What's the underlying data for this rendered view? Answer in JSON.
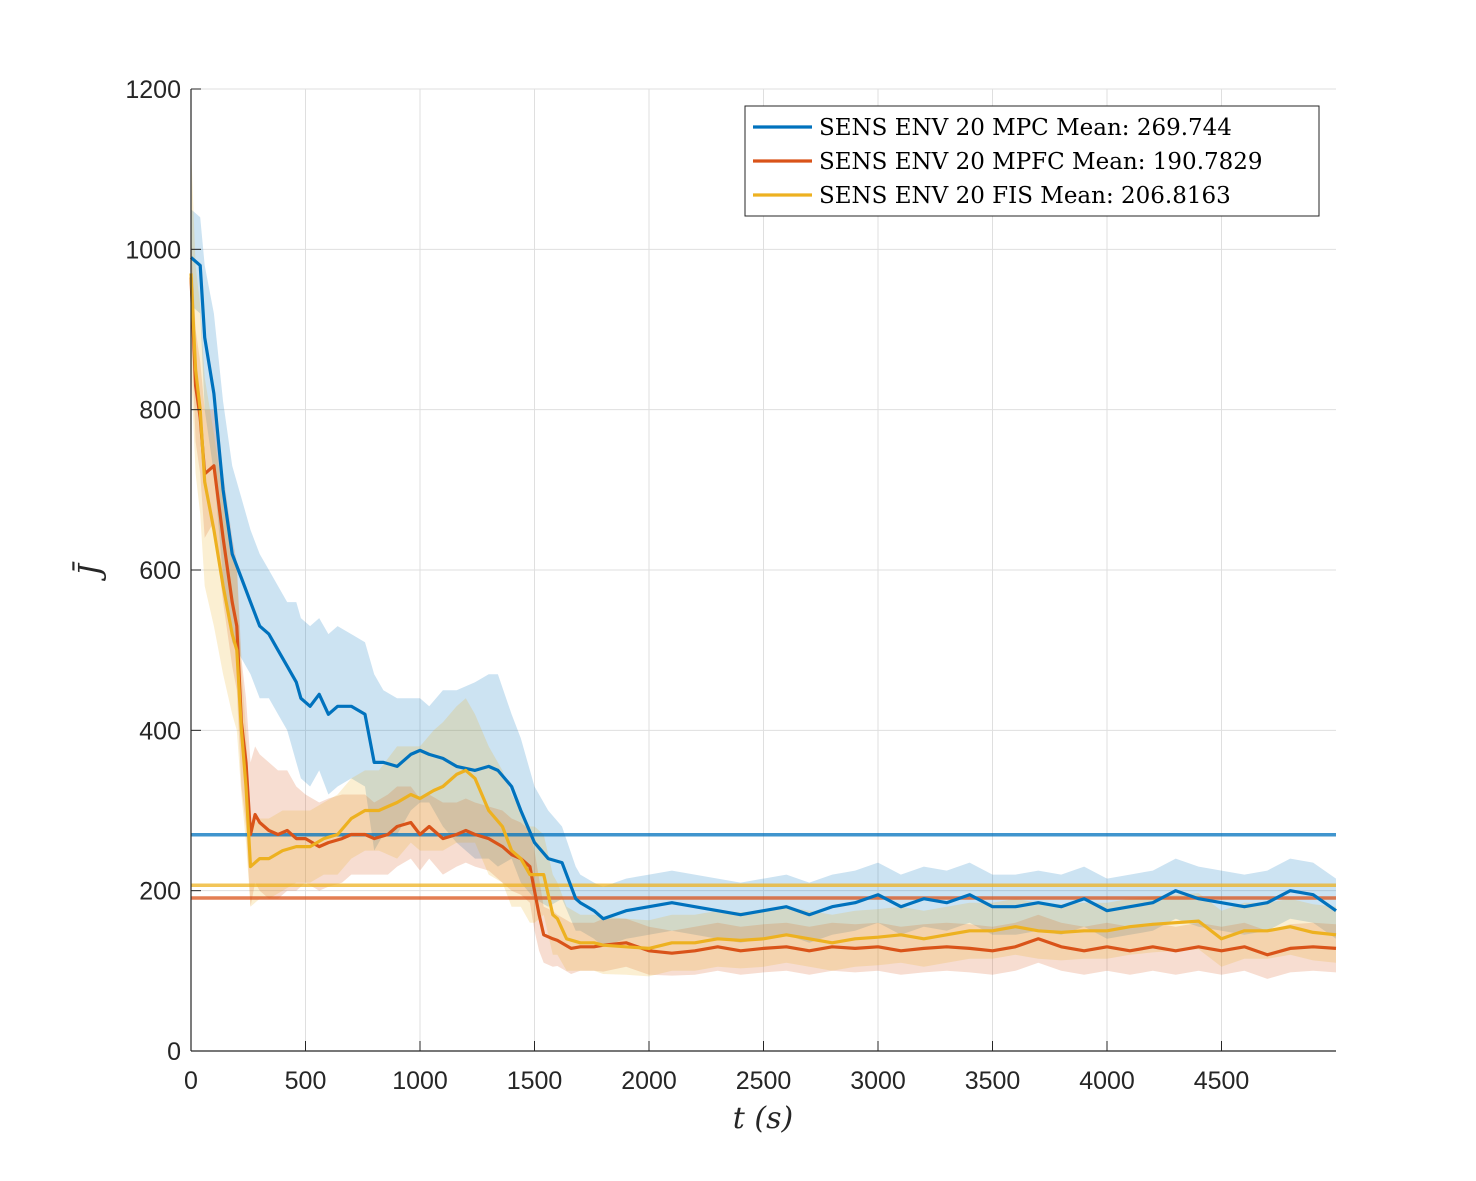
{
  "chart_data": {
    "type": "line",
    "xlabel": "t (s)",
    "ylabel": "J̄",
    "xlim": [
      0,
      5000
    ],
    "ylim": [
      0,
      1200
    ],
    "xticks": [
      0,
      500,
      1000,
      1500,
      2000,
      2500,
      3000,
      3500,
      4000,
      4500
    ],
    "xtick_labels": [
      "0",
      "500",
      "1000",
      "1500",
      "2000",
      "2500",
      "3000",
      "3500",
      "4000",
      "4500"
    ],
    "yticks": [
      0,
      200,
      400,
      600,
      800,
      1000,
      1200
    ],
    "ytick_labels": [
      "0",
      "200",
      "400",
      "600",
      "800",
      "1000",
      "1200"
    ],
    "grid": true,
    "legend_position": "top-right",
    "series": [
      {
        "name": "SENS ENV 20 MPC Mean: 269.744",
        "color": "#0072BD",
        "mean_line": 269.744,
        "x": [
          0,
          40,
          60,
          100,
          140,
          180,
          220,
          260,
          300,
          340,
          380,
          420,
          460,
          480,
          520,
          560,
          600,
          640,
          700,
          760,
          800,
          840,
          900,
          960,
          1000,
          1040,
          1100,
          1160,
          1240,
          1300,
          1340,
          1400,
          1440,
          1500,
          1560,
          1620,
          1680,
          1700,
          1760,
          1800,
          1900,
          2000,
          2100,
          2200,
          2300,
          2400,
          2500,
          2600,
          2700,
          2800,
          2900,
          3000,
          3100,
          3200,
          3300,
          3400,
          3500,
          3600,
          3700,
          3800,
          3900,
          4000,
          4100,
          4200,
          4300,
          4400,
          4500,
          4600,
          4700,
          4800,
          4900,
          5000
        ],
        "y": [
          990,
          980,
          890,
          820,
          700,
          620,
          590,
          560,
          530,
          520,
          500,
          480,
          460,
          440,
          430,
          445,
          420,
          430,
          430,
          420,
          360,
          360,
          355,
          370,
          375,
          370,
          365,
          355,
          350,
          355,
          350,
          330,
          300,
          260,
          240,
          235,
          190,
          185,
          175,
          165,
          175,
          180,
          185,
          180,
          175,
          170,
          175,
          180,
          170,
          180,
          185,
          195,
          180,
          190,
          185,
          195,
          180,
          180,
          185,
          180,
          190,
          175,
          180,
          185,
          200,
          190,
          185,
          180,
          185,
          200,
          195,
          175
        ],
        "band_upper": [
          1050,
          1040,
          980,
          920,
          810,
          730,
          690,
          650,
          620,
          600,
          580,
          560,
          560,
          540,
          530,
          540,
          520,
          530,
          520,
          510,
          470,
          450,
          440,
          440,
          440,
          430,
          450,
          450,
          460,
          470,
          470,
          420,
          390,
          330,
          300,
          280,
          230,
          220,
          210,
          205,
          215,
          220,
          225,
          220,
          215,
          210,
          215,
          220,
          210,
          220,
          225,
          235,
          220,
          230,
          225,
          235,
          220,
          220,
          225,
          220,
          230,
          215,
          220,
          225,
          240,
          230,
          225,
          220,
          225,
          240,
          235,
          215
        ],
        "band_lower": [
          930,
          920,
          800,
          720,
          590,
          510,
          490,
          470,
          440,
          440,
          420,
          400,
          360,
          340,
          330,
          350,
          320,
          330,
          340,
          330,
          250,
          270,
          270,
          300,
          310,
          310,
          280,
          260,
          240,
          240,
          230,
          240,
          210,
          190,
          180,
          190,
          150,
          150,
          140,
          130,
          140,
          145,
          150,
          145,
          140,
          135,
          140,
          145,
          135,
          145,
          150,
          160,
          145,
          155,
          150,
          160,
          145,
          145,
          150,
          145,
          155,
          140,
          145,
          150,
          165,
          155,
          150,
          145,
          150,
          165,
          160,
          140
        ]
      },
      {
        "name": "SENS ENV 20 MPFC Mean: 190.7829",
        "color": "#D95319",
        "mean_line": 190.7829,
        "x": [
          0,
          20,
          40,
          60,
          100,
          140,
          180,
          200,
          220,
          240,
          260,
          280,
          300,
          340,
          380,
          420,
          460,
          500,
          560,
          600,
          660,
          700,
          760,
          800,
          860,
          900,
          960,
          1000,
          1040,
          1100,
          1160,
          1200,
          1240,
          1300,
          1360,
          1400,
          1440,
          1480,
          1500,
          1520,
          1540,
          1580,
          1600,
          1660,
          1700,
          1760,
          1800,
          1900,
          2000,
          2100,
          2200,
          2300,
          2400,
          2500,
          2600,
          2700,
          2800,
          2900,
          3000,
          3100,
          3200,
          3300,
          3400,
          3500,
          3600,
          3700,
          3800,
          3900,
          4000,
          4100,
          4200,
          4300,
          4400,
          4500,
          4600,
          4700,
          4800,
          4900,
          5000
        ],
        "y": [
          965,
          830,
          790,
          720,
          730,
          640,
          560,
          530,
          410,
          360,
          270,
          295,
          285,
          275,
          270,
          275,
          265,
          265,
          255,
          260,
          265,
          270,
          270,
          265,
          270,
          280,
          285,
          270,
          280,
          265,
          270,
          275,
          270,
          265,
          255,
          245,
          240,
          230,
          200,
          170,
          145,
          140,
          138,
          128,
          130,
          130,
          132,
          135,
          125,
          122,
          125,
          130,
          125,
          128,
          130,
          125,
          130,
          128,
          130,
          125,
          128,
          130,
          128,
          125,
          130,
          140,
          130,
          125,
          130,
          125,
          130,
          125,
          130,
          125,
          130,
          120,
          128,
          130,
          128
        ],
        "band_upper": [
          1020,
          900,
          860,
          800,
          800,
          720,
          640,
          610,
          490,
          440,
          360,
          380,
          370,
          360,
          350,
          350,
          330,
          320,
          310,
          315,
          320,
          320,
          320,
          310,
          320,
          330,
          330,
          315,
          320,
          310,
          310,
          315,
          310,
          305,
          300,
          290,
          285,
          275,
          250,
          215,
          180,
          175,
          170,
          160,
          160,
          160,
          165,
          165,
          155,
          150,
          155,
          160,
          155,
          158,
          160,
          155,
          160,
          158,
          160,
          155,
          158,
          160,
          158,
          155,
          160,
          170,
          160,
          155,
          160,
          155,
          160,
          155,
          160,
          155,
          160,
          150,
          158,
          160,
          158
        ],
        "band_lower": [
          910,
          760,
          720,
          640,
          660,
          560,
          480,
          450,
          330,
          280,
          180,
          210,
          200,
          190,
          190,
          200,
          200,
          210,
          200,
          205,
          210,
          220,
          220,
          220,
          220,
          230,
          240,
          225,
          240,
          220,
          230,
          235,
          230,
          225,
          210,
          200,
          195,
          185,
          150,
          125,
          110,
          105,
          106,
          96,
          100,
          100,
          99,
          105,
          95,
          94,
          95,
          100,
          95,
          98,
          100,
          95,
          100,
          98,
          100,
          95,
          98,
          100,
          98,
          95,
          100,
          110,
          100,
          95,
          100,
          95,
          100,
          95,
          100,
          95,
          100,
          90,
          98,
          100,
          98
        ]
      },
      {
        "name": "SENS ENV 20 FIS Mean: 206.8163",
        "color": "#EDB120",
        "mean_line": 206.8163,
        "x": [
          0,
          20,
          40,
          60,
          100,
          140,
          180,
          200,
          220,
          240,
          260,
          300,
          340,
          400,
          460,
          520,
          580,
          640,
          700,
          760,
          820,
          900,
          960,
          1000,
          1060,
          1100,
          1160,
          1200,
          1240,
          1300,
          1360,
          1400,
          1440,
          1480,
          1500,
          1540,
          1580,
          1600,
          1640,
          1700,
          1760,
          1800,
          1900,
          2000,
          2100,
          2200,
          2300,
          2400,
          2500,
          2600,
          2700,
          2800,
          2900,
          3000,
          3100,
          3200,
          3300,
          3400,
          3500,
          3600,
          3700,
          3800,
          3900,
          4000,
          4100,
          4200,
          4300,
          4400,
          4500,
          4600,
          4700,
          4800,
          4900,
          5000
        ],
        "y": [
          970,
          850,
          800,
          710,
          650,
          580,
          520,
          500,
          400,
          330,
          230,
          240,
          240,
          250,
          255,
          255,
          265,
          270,
          290,
          300,
          300,
          310,
          320,
          315,
          325,
          330,
          345,
          350,
          340,
          300,
          280,
          250,
          240,
          220,
          220,
          220,
          170,
          165,
          140,
          135,
          135,
          132,
          130,
          128,
          135,
          135,
          140,
          138,
          140,
          145,
          140,
          135,
          140,
          142,
          145,
          140,
          145,
          150,
          150,
          155,
          150,
          148,
          150,
          150,
          155,
          158,
          160,
          162,
          140,
          150,
          150,
          155,
          148,
          145
        ],
        "band_upper": [
          1130,
          980,
          930,
          840,
          770,
          690,
          620,
          600,
          480,
          400,
          280,
          290,
          290,
          300,
          300,
          300,
          310,
          320,
          340,
          350,
          350,
          380,
          380,
          380,
          400,
          410,
          430,
          440,
          420,
          380,
          350,
          320,
          300,
          280,
          280,
          270,
          220,
          210,
          180,
          170,
          170,
          168,
          165,
          163,
          170,
          170,
          175,
          173,
          175,
          180,
          175,
          170,
          175,
          177,
          180,
          175,
          180,
          185,
          185,
          190,
          185,
          183,
          185,
          185,
          190,
          193,
          195,
          197,
          175,
          185,
          185,
          190,
          183,
          180
        ],
        "band_lower": [
          850,
          720,
          670,
          580,
          530,
          470,
          420,
          400,
          320,
          260,
          180,
          190,
          190,
          200,
          210,
          210,
          220,
          220,
          240,
          250,
          250,
          240,
          260,
          250,
          250,
          250,
          260,
          260,
          260,
          220,
          210,
          180,
          180,
          160,
          160,
          170,
          120,
          120,
          100,
          100,
          100,
          96,
          95,
          93,
          100,
          100,
          105,
          103,
          105,
          110,
          105,
          100,
          105,
          107,
          110,
          105,
          110,
          115,
          115,
          120,
          115,
          113,
          115,
          115,
          120,
          123,
          125,
          127,
          105,
          115,
          115,
          120,
          113,
          110
        ]
      }
    ]
  }
}
